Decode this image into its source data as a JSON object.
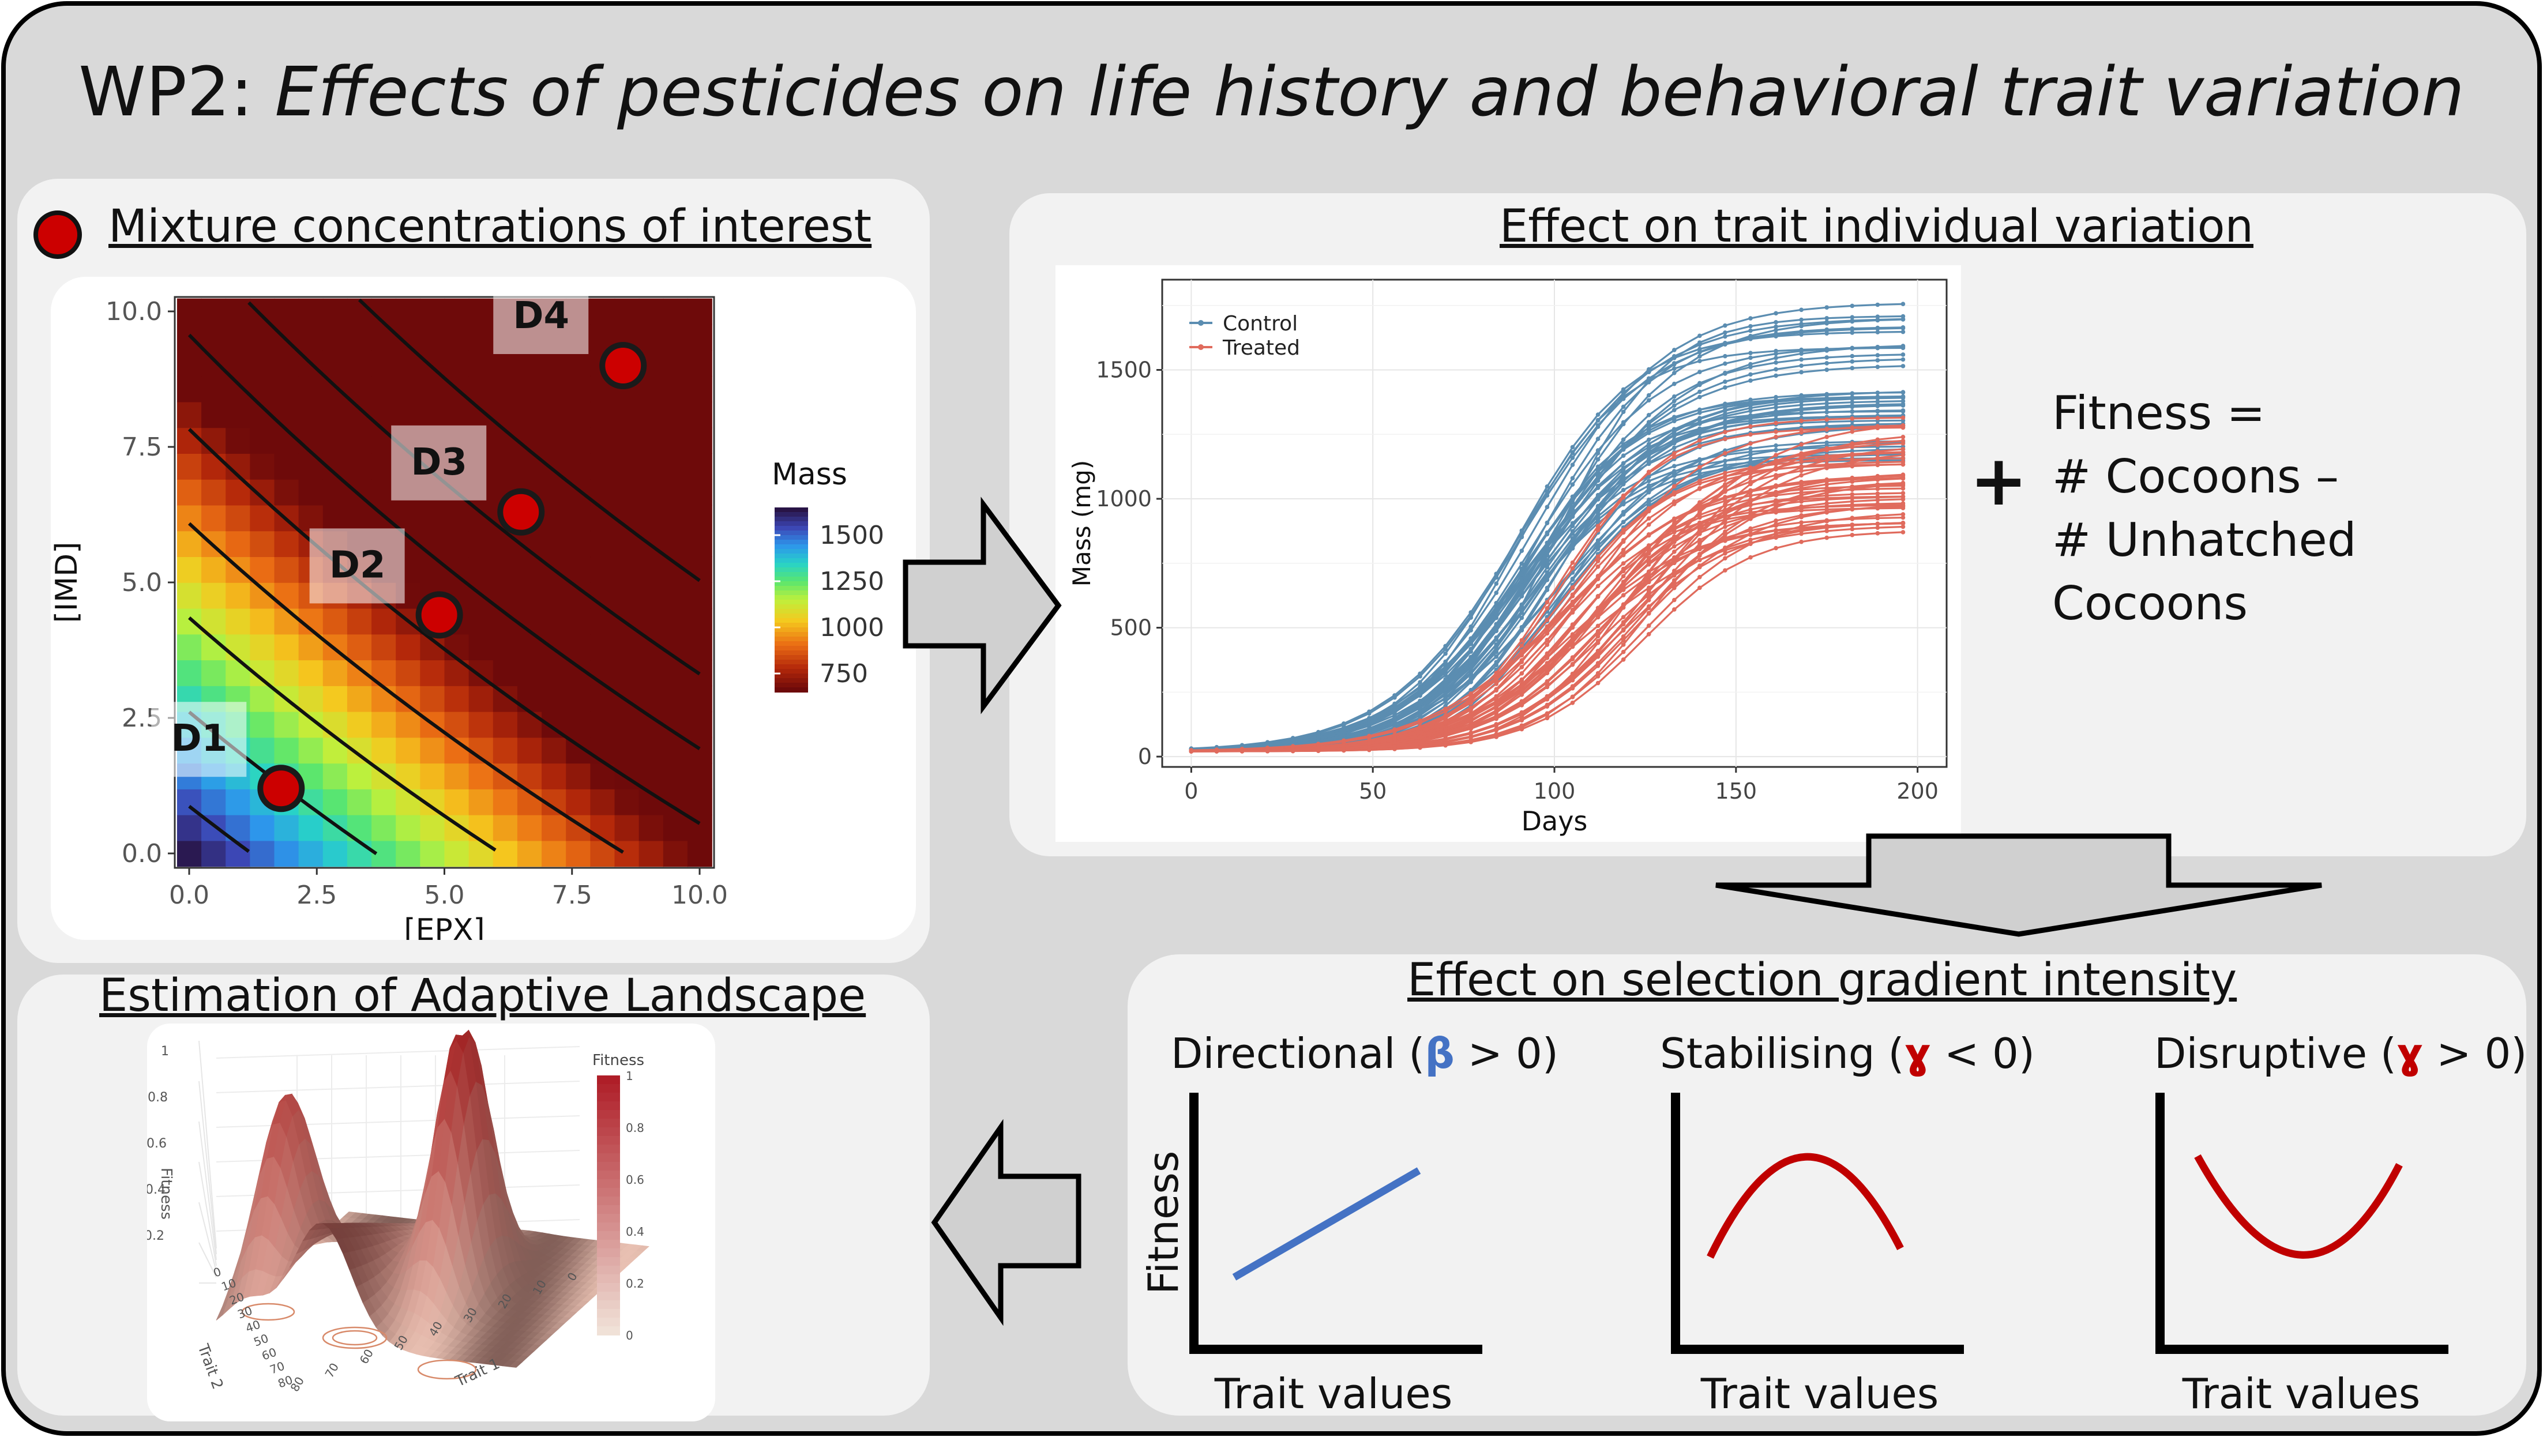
{
  "title": {
    "prefix": "WP2:",
    "italic": "Effects of pesticides on life history and behavioral trait variation"
  },
  "panel_mixture": {
    "heading": "Mixture concentrations of interest",
    "chart_data": {
      "type": "heatmap",
      "xlabel": "[EPX]",
      "ylabel": "[IMD]",
      "xlim": [
        0,
        10
      ],
      "ylim": [
        0,
        10
      ],
      "x_ticks": [
        "0.0",
        "2.5",
        "5.0",
        "7.5",
        "10.0"
      ],
      "y_ticks": [
        "0.0",
        "2.5",
        "5.0",
        "7.5",
        "10.0"
      ],
      "legend_title": "Mass",
      "legend_ticks": [
        "1500",
        "1250",
        "1000",
        "750"
      ],
      "legend_range": [
        650,
        1650
      ],
      "points": [
        {
          "label": "D1",
          "x": 1.8,
          "y": 1.2
        },
        {
          "label": "D2",
          "x": 4.9,
          "y": 4.4
        },
        {
          "label": "D3",
          "x": 6.5,
          "y": 6.3
        },
        {
          "label": "D4",
          "x": 8.5,
          "y": 9.0
        }
      ],
      "colors": {
        "point_fill": "#cc0000",
        "point_stroke": "#1a1a1a",
        "contour": "#111111"
      }
    }
  },
  "panel_variation": {
    "heading": "Effect on trait individual variation",
    "chart_data": {
      "type": "line",
      "xlabel": "Days",
      "ylabel": "Mass (mg)",
      "xlim": [
        -8,
        208
      ],
      "ylim": [
        -40,
        1850
      ],
      "x_ticks": [
        0,
        50,
        100,
        150,
        200
      ],
      "y_ticks": [
        0,
        500,
        1000,
        1500
      ],
      "legend_position": "top-left",
      "series": [
        {
          "name": "Control",
          "color": "#5b8db1",
          "count": 40,
          "asymptote_range": [
            1150,
            1780
          ],
          "midpoint_range": [
            88,
            102
          ]
        },
        {
          "name": "Treated",
          "color": "#e06b5d",
          "count": 40,
          "asymptote_range": [
            860,
            1330
          ],
          "midpoint_range": [
            100,
            128
          ]
        }
      ]
    }
  },
  "fitness_formula": {
    "plus": "+",
    "lines": [
      "Fitness =",
      "# Cocoons –",
      "# Unhatched",
      "Cocoons"
    ]
  },
  "panel_selection": {
    "heading": "Effect on selection gradient intensity",
    "y_axis_label": "Fitness",
    "directional": {
      "pre": "Directional (",
      "sym": "β",
      "post": " > 0)",
      "trait": "Trait values",
      "shape": "increasing"
    },
    "stabilising": {
      "pre": "Stabilising (",
      "sym": "ɣ",
      "post": " < 0)",
      "trait": "Trait values",
      "shape": "concave"
    },
    "disruptive": {
      "pre": "Disruptive (",
      "sym": "ɣ",
      "post": " > 0)",
      "trait": "Trait values",
      "shape": "convex"
    },
    "colors": {
      "directional": "#4472c4",
      "quadratic": "#c00000"
    }
  },
  "panel_landscape": {
    "heading": "Estimation of Adaptive Landscape",
    "legend_title": "Fitness",
    "legend_ticks": [
      "1",
      "0.8",
      "0.6",
      "0.4",
      "0.2",
      "0"
    ],
    "z_axis_label": "Fitness",
    "z_ticks": [
      "1",
      "0.8",
      "0.6",
      "0.4",
      "0.2"
    ],
    "trait1_label": "Trait 1",
    "trait1_ticks": [
      "80",
      "70",
      "60",
      "50",
      "40",
      "30",
      "20",
      "10",
      "0"
    ],
    "trait2_label": "Trait 2",
    "trait2_ticks": [
      "0",
      "10",
      "20",
      "30",
      "40",
      "50",
      "60",
      "70",
      "80"
    ]
  },
  "colors": {
    "outer_bg": "#d9d9d9",
    "panel_bg": "#f2f2f2",
    "arrow_fill": "#d0d0d0",
    "arrow_stroke": "#000000"
  }
}
